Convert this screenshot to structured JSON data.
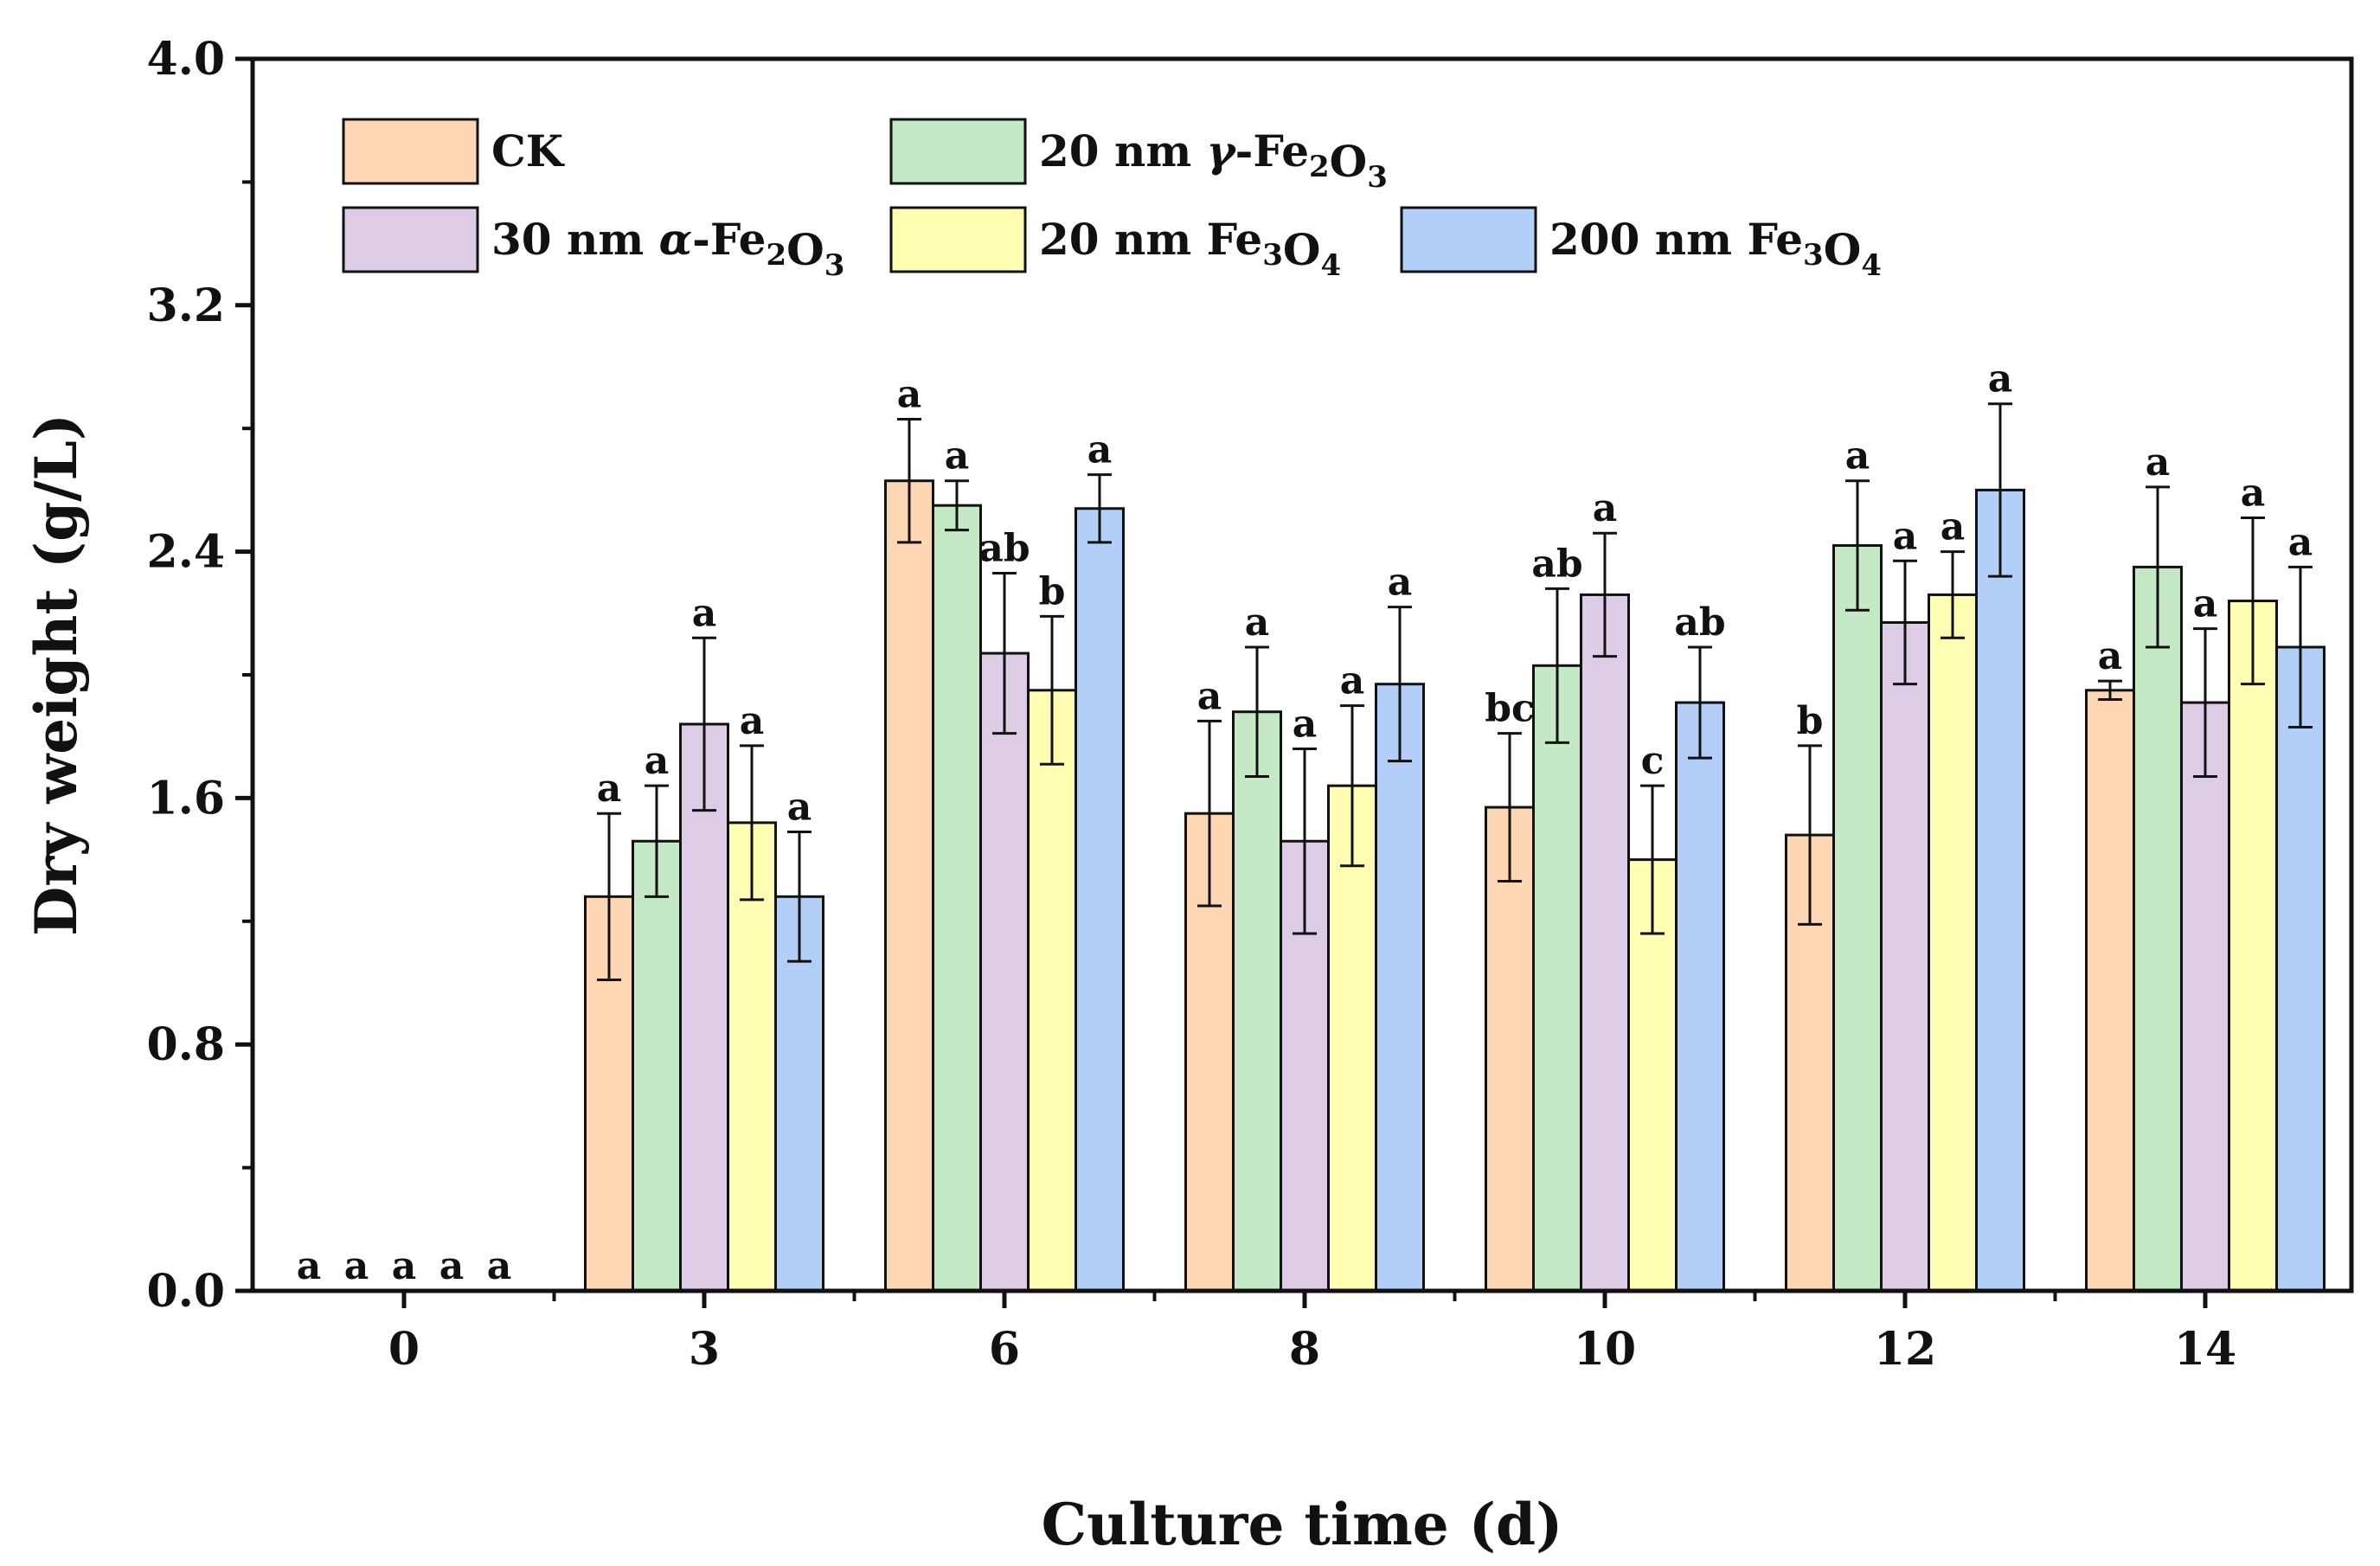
{
  "chart_data": {
    "type": "bar",
    "xlabel": "Culture time (d)",
    "ylabel": "Dry weight (g/L)",
    "ylim": [
      0,
      4.0
    ],
    "yticks": [
      "0.0",
      "0.8",
      "1.6",
      "2.4",
      "3.2",
      "4.0"
    ],
    "categories": [
      "0",
      "3",
      "6",
      "8",
      "10",
      "12",
      "14"
    ],
    "legend_position": "top-left",
    "series": [
      {
        "name": "CK",
        "label_parts": [
          {
            "t": "CK"
          }
        ],
        "color": "#FDD7B4",
        "values": [
          0,
          1.28,
          2.63,
          1.55,
          1.57,
          1.48,
          1.95
        ],
        "errors": [
          0,
          0.27,
          0.2,
          0.3,
          0.24,
          0.29,
          0.03
        ],
        "sig": [
          "a",
          "a",
          "a",
          "a",
          "bc",
          "b",
          "a"
        ]
      },
      {
        "name": "20 nm γ-Fe2O3",
        "label_parts": [
          {
            "t": "20 nm "
          },
          {
            "t": "γ",
            "i": true
          },
          {
            "t": "-Fe"
          },
          {
            "t": "2",
            "sub": true
          },
          {
            "t": "O"
          },
          {
            "t": "3",
            "sub": true
          }
        ],
        "color": "#C5E8C5",
        "values": [
          0,
          1.46,
          2.55,
          1.88,
          2.03,
          2.42,
          2.35
        ],
        "errors": [
          0,
          0.18,
          0.08,
          0.21,
          0.25,
          0.21,
          0.26
        ],
        "sig": [
          "a",
          "a",
          "a",
          "a",
          "ab",
          "a",
          "a"
        ]
      },
      {
        "name": "30 nm α-Fe2O3",
        "label_parts": [
          {
            "t": "30 nm "
          },
          {
            "t": "α",
            "i": true
          },
          {
            "t": "-Fe"
          },
          {
            "t": "2",
            "sub": true
          },
          {
            "t": "O"
          },
          {
            "t": "3",
            "sub": true
          }
        ],
        "color": "#DCCCE6",
        "values": [
          0,
          1.84,
          2.07,
          1.46,
          2.26,
          2.17,
          1.91
        ],
        "errors": [
          0,
          0.28,
          0.26,
          0.3,
          0.2,
          0.2,
          0.24
        ],
        "sig": [
          "a",
          "a",
          "ab",
          "a",
          "a",
          "a",
          "a"
        ]
      },
      {
        "name": "20 nm Fe3O4",
        "label_parts": [
          {
            "t": "20 nm Fe"
          },
          {
            "t": "3",
            "sub": true
          },
          {
            "t": "O"
          },
          {
            "t": "4",
            "sub": true
          }
        ],
        "color": "#FFFFB3",
        "values": [
          0,
          1.52,
          1.95,
          1.64,
          1.4,
          2.26,
          2.24
        ],
        "errors": [
          0,
          0.25,
          0.24,
          0.26,
          0.24,
          0.14,
          0.27
        ],
        "sig": [
          "a",
          "a",
          "b",
          "a",
          "c",
          "a",
          "a"
        ]
      },
      {
        "name": "200 nm Fe3O4",
        "label_parts": [
          {
            "t": "200 nm Fe"
          },
          {
            "t": "3",
            "sub": true
          },
          {
            "t": "O"
          },
          {
            "t": "4",
            "sub": true
          }
        ],
        "color": "#B3CEF7",
        "values": [
          0,
          1.28,
          2.54,
          1.97,
          1.91,
          2.6,
          2.09
        ],
        "errors": [
          0,
          0.21,
          0.11,
          0.25,
          0.18,
          0.28,
          0.26
        ],
        "sig": [
          "a",
          "a",
          "a",
          "a",
          "ab",
          "a",
          "a"
        ]
      }
    ]
  }
}
